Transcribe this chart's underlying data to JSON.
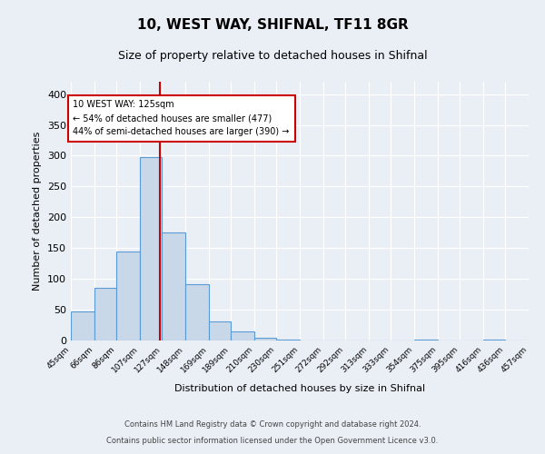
{
  "title": "10, WEST WAY, SHIFNAL, TF11 8GR",
  "subtitle": "Size of property relative to detached houses in Shifnal",
  "xlabel": "Distribution of detached houses by size in Shifnal",
  "ylabel": "Number of detached properties",
  "bin_edges": [
    45,
    66,
    86,
    107,
    127,
    148,
    169,
    189,
    210,
    230,
    251,
    272,
    292,
    313,
    333,
    354,
    375,
    395,
    416,
    436,
    457
  ],
  "bar_heights": [
    47,
    86,
    144,
    297,
    175,
    92,
    31,
    15,
    5,
    1,
    0,
    0,
    0,
    0,
    0,
    1,
    0,
    0,
    1,
    0
  ],
  "bar_color": "#c8d8e8",
  "bar_edge_color": "#5b9bd5",
  "bar_edge_width": 0.8,
  "property_line_x": 125,
  "property_line_color": "#cc0000",
  "annotation_line1": "10 WEST WAY: 125sqm",
  "annotation_line2": "← 54% of detached houses are smaller (477)",
  "annotation_line3": "44% of semi-detached houses are larger (390) →",
  "annotation_box_color": "#ffffff",
  "annotation_box_edge_color": "#cc0000",
  "ylim": [
    0,
    420
  ],
  "yticks": [
    0,
    50,
    100,
    150,
    200,
    250,
    300,
    350,
    400
  ],
  "tick_labels": [
    "45sqm",
    "66sqm",
    "86sqm",
    "107sqm",
    "127sqm",
    "148sqm",
    "169sqm",
    "189sqm",
    "210sqm",
    "230sqm",
    "251sqm",
    "272sqm",
    "292sqm",
    "313sqm",
    "333sqm",
    "354sqm",
    "375sqm",
    "395sqm",
    "416sqm",
    "436sqm",
    "457sqm"
  ],
  "background_color": "#eaeff6",
  "plot_background_color": "#eaeff6",
  "grid_color": "#ffffff",
  "footer_text1": "Contains HM Land Registry data © Crown copyright and database right 2024.",
  "footer_text2": "Contains public sector information licensed under the Open Government Licence v3.0."
}
